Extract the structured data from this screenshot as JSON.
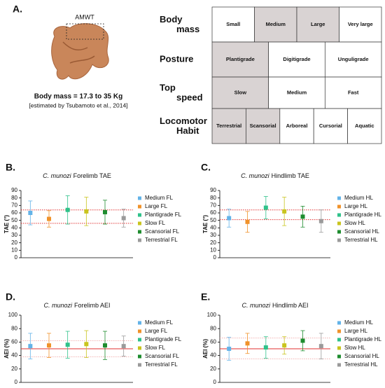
{
  "panel_a": {
    "label": "A.",
    "image_label": "AMWT",
    "body_mass": "Body mass = 17.3 to 35 Kg",
    "citation": "[estimated by Tsubamoto et al., 2014]",
    "highlight_color": "#d9d3d3",
    "rows": [
      {
        "label": "Body mass",
        "cells": [
          "Small",
          "Medium",
          "Large",
          "Very large"
        ],
        "highlighted": [
          false,
          true,
          true,
          false
        ]
      },
      {
        "label": "Posture",
        "cells": [
          "Plantigrade",
          "Digitigrade",
          "Unguligrade"
        ],
        "highlighted": [
          true,
          false,
          false
        ]
      },
      {
        "label": "Top speed",
        "cells": [
          "Slow",
          "Medium",
          "Fast"
        ],
        "highlighted": [
          true,
          false,
          false
        ]
      },
      {
        "label": "Locomotor Habit",
        "cells": [
          "Terrestrial",
          "Scansorial",
          "Arboreal",
          "Cursorial",
          "Aquatic"
        ],
        "highlighted": [
          true,
          true,
          false,
          false,
          false
        ]
      }
    ]
  },
  "chart_data": [
    {
      "type": "errorbar",
      "panel_label": "B.",
      "title_italic": "C. munozi",
      "title": "Forelimb TAE",
      "ylabel": "TAE (°)",
      "ylim": [
        0,
        90
      ],
      "yticks": [
        0,
        10,
        20,
        30,
        40,
        50,
        60,
        70,
        80,
        90
      ],
      "ref_lines": [
        {
          "value": 64,
          "color": "#e03030",
          "style": "dotted"
        },
        {
          "value": 46,
          "color": "#e03030",
          "style": "dotted"
        }
      ],
      "series": [
        {
          "name": "Medium FL",
          "color": "#63b3e8",
          "values": [
            60
          ],
          "errors": [
            16
          ]
        },
        {
          "name": "Large FL",
          "color": "#f0922a",
          "values": [
            52
          ],
          "errors": [
            11
          ]
        },
        {
          "name": "Plantigrade FL",
          "color": "#2ec28a",
          "values": [
            64
          ],
          "errors": [
            19
          ]
        },
        {
          "name": "Slow FL",
          "color": "#c9c41e",
          "values": [
            62
          ],
          "errors": [
            19
          ]
        },
        {
          "name": "Scansorial FL",
          "color": "#1e8c2e",
          "values": [
            61
          ],
          "errors": [
            16
          ]
        },
        {
          "name": "Terrestrial FL",
          "color": "#9a9a9a",
          "values": [
            53
          ],
          "errors": [
            12
          ]
        }
      ]
    },
    {
      "type": "errorbar",
      "panel_label": "C.",
      "title_italic": "C. munozi",
      "title": "Hindlimb TAE",
      "ylabel": "TAE (°)",
      "ylim": [
        0,
        90
      ],
      "yticks": [
        0,
        10,
        20,
        30,
        40,
        50,
        60,
        70,
        80,
        90
      ],
      "ref_lines": [
        {
          "value": 64,
          "color": "#e03030",
          "style": "dotted"
        },
        {
          "value": 51,
          "color": "#e03030",
          "style": "dotted"
        }
      ],
      "series": [
        {
          "name": "Medium HL",
          "color": "#63b3e8",
          "values": [
            53
          ],
          "errors": [
            12
          ]
        },
        {
          "name": "Large HL",
          "color": "#f0922a",
          "values": [
            48
          ],
          "errors": [
            14
          ]
        },
        {
          "name": "Plantigrade HL",
          "color": "#2ec28a",
          "values": [
            67
          ],
          "errors": [
            15
          ]
        },
        {
          "name": "Slow HL",
          "color": "#c9c41e",
          "values": [
            62
          ],
          "errors": [
            19
          ]
        },
        {
          "name": "Scansorial HL",
          "color": "#1e8c2e",
          "values": [
            55
          ],
          "errors": [
            14
          ]
        },
        {
          "name": "Terrestrial HL",
          "color": "#9a9a9a",
          "values": [
            49
          ],
          "errors": [
            15
          ]
        }
      ]
    },
    {
      "type": "errorbar",
      "panel_label": "D.",
      "title_italic": "C. munozi",
      "title": "Forelimb AEI",
      "ylabel": "AEI (%)",
      "ylim": [
        0,
        100
      ],
      "yticks": [
        0,
        20,
        40,
        60,
        80,
        100
      ],
      "ref_lines": [
        {
          "value": 50,
          "color": "#e03030",
          "style": "solid"
        },
        {
          "value": 62,
          "color": "#f2b0b0",
          "style": "dotted"
        },
        {
          "value": 38,
          "color": "#f2b0b0",
          "style": "dotted"
        }
      ],
      "series": [
        {
          "name": "Medium FL",
          "color": "#63b3e8",
          "values": [
            54
          ],
          "errors": [
            19
          ]
        },
        {
          "name": "Large FL",
          "color": "#f0922a",
          "values": [
            55
          ],
          "errors": [
            18
          ]
        },
        {
          "name": "Plantigrade FL",
          "color": "#2ec28a",
          "values": [
            56
          ],
          "errors": [
            20
          ]
        },
        {
          "name": "Slow FL",
          "color": "#c9c41e",
          "values": [
            57
          ],
          "errors": [
            20
          ]
        },
        {
          "name": "Scansorial FL",
          "color": "#1e8c2e",
          "values": [
            55
          ],
          "errors": [
            21
          ]
        },
        {
          "name": "Terrestrial FL",
          "color": "#9a9a9a",
          "values": [
            54
          ],
          "errors": [
            15
          ]
        }
      ]
    },
    {
      "type": "errorbar",
      "panel_label": "E.",
      "title_italic": "C. munozi",
      "title": "Hindlimb AEI",
      "ylabel": "AEI (%)",
      "ylim": [
        0,
        100
      ],
      "yticks": [
        0,
        20,
        40,
        60,
        80,
        100
      ],
      "ref_lines": [
        {
          "value": 50,
          "color": "#e03030",
          "style": "solid"
        },
        {
          "value": 66,
          "color": "#f2b0b0",
          "style": "dotted"
        },
        {
          "value": 35,
          "color": "#f2b0b0",
          "style": "dotted"
        }
      ],
      "series": [
        {
          "name": "Medium HL",
          "color": "#63b3e8",
          "values": [
            50
          ],
          "errors": [
            17
          ]
        },
        {
          "name": "Large HL",
          "color": "#f0922a",
          "values": [
            58
          ],
          "errors": [
            15
          ]
        },
        {
          "name": "Plantigrade HL",
          "color": "#2ec28a",
          "values": [
            52
          ],
          "errors": [
            16
          ]
        },
        {
          "name": "Slow HL",
          "color": "#c9c41e",
          "values": [
            55
          ],
          "errors": [
            13
          ]
        },
        {
          "name": "Scansorial HL",
          "color": "#1e8c2e",
          "values": [
            62
          ],
          "errors": [
            15
          ]
        },
        {
          "name": "Terrestrial HL",
          "color": "#9a9a9a",
          "values": [
            54
          ],
          "errors": [
            19
          ]
        }
      ]
    }
  ]
}
